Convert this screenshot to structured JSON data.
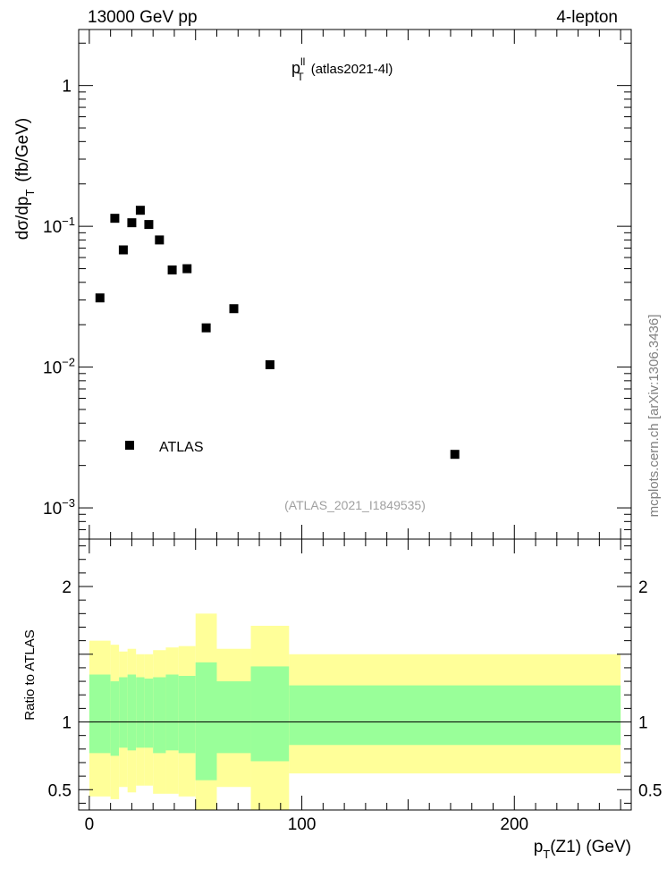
{
  "header": {
    "left": "13000 GeV pp",
    "right": "4-lepton"
  },
  "side_label": "mcplots.cern.ch [arXiv:1306.3436]",
  "chart_data": [
    {
      "type": "scatter",
      "title_main": "p",
      "title_sup": "ll",
      "title_sub": "T",
      "title_rest": "(atlas2021-4l)",
      "ylabel_main": "dσ/dp",
      "ylabel_sub": "T",
      "ylabel_rest": "(fb/GeV)",
      "y_scale": "log",
      "ylim": [
        0.0006,
        2.5
      ],
      "xlim": [
        -5,
        255
      ],
      "y_ticks": [
        {
          "value": 1,
          "label": "1"
        },
        {
          "value": 0.1,
          "label": "10",
          "exp": "−1"
        },
        {
          "value": 0.01,
          "label": "10",
          "exp": "−2"
        },
        {
          "value": 0.001,
          "label": "10",
          "exp": "−3"
        }
      ],
      "legend": {
        "label": "ATLAS",
        "placement": "lower-left"
      },
      "watermark": "(ATLAS_2021_I1849535)",
      "series": [
        {
          "name": "ATLAS",
          "marker": "square",
          "color": "#000000",
          "x": [
            5,
            12,
            16,
            20,
            24,
            28,
            33,
            39,
            46,
            55,
            68,
            85,
            172
          ],
          "y": [
            0.031,
            0.114,
            0.068,
            0.106,
            0.13,
            0.103,
            0.08,
            0.049,
            0.05,
            0.019,
            0.026,
            0.0104,
            0.0024
          ]
        }
      ]
    },
    {
      "type": "area",
      "ylabel": "Ratio to ATLAS",
      "xlabel_main": "p",
      "xlabel_sub": "T",
      "xlabel_rest": "(Z1) (GeV)",
      "ylim": [
        0.35,
        2.35
      ],
      "xlim": [
        -5,
        255
      ],
      "y_ticks": [
        {
          "value": 0.5,
          "label": "0.5"
        },
        {
          "value": 1,
          "label": "1"
        },
        {
          "value": 1.5,
          "label": ""
        },
        {
          "value": 2,
          "label": "2"
        }
      ],
      "x_ticks": [
        {
          "value": 0,
          "label": "0"
        },
        {
          "value": 100,
          "label": "100"
        },
        {
          "value": 200,
          "label": "200"
        }
      ],
      "reference_line": 1,
      "band_colors": {
        "outer": "#ffff99",
        "inner": "#99ff99"
      },
      "bins": [
        {
          "x0": 0,
          "x1": 10,
          "outer_lo": 0.45,
          "outer_hi": 1.6,
          "inner_lo": 0.77,
          "inner_hi": 1.35
        },
        {
          "x0": 10,
          "x1": 14,
          "outer_lo": 0.43,
          "outer_hi": 1.57,
          "inner_lo": 0.75,
          "inner_hi": 1.3
        },
        {
          "x0": 14,
          "x1": 18,
          "outer_lo": 0.52,
          "outer_hi": 1.52,
          "inner_lo": 0.81,
          "inner_hi": 1.33
        },
        {
          "x0": 18,
          "x1": 22,
          "outer_lo": 0.48,
          "outer_hi": 1.54,
          "inner_lo": 0.79,
          "inner_hi": 1.35
        },
        {
          "x0": 22,
          "x1": 26,
          "outer_lo": 0.53,
          "outer_hi": 1.5,
          "inner_lo": 0.81,
          "inner_hi": 1.33
        },
        {
          "x0": 26,
          "x1": 30,
          "outer_lo": 0.53,
          "outer_hi": 1.5,
          "inner_lo": 0.81,
          "inner_hi": 1.32
        },
        {
          "x0": 30,
          "x1": 36,
          "outer_lo": 0.47,
          "outer_hi": 1.53,
          "inner_lo": 0.77,
          "inner_hi": 1.33
        },
        {
          "x0": 36,
          "x1": 42,
          "outer_lo": 0.47,
          "outer_hi": 1.55,
          "inner_lo": 0.79,
          "inner_hi": 1.35
        },
        {
          "x0": 42,
          "x1": 50,
          "outer_lo": 0.45,
          "outer_hi": 1.56,
          "inner_lo": 0.77,
          "inner_hi": 1.34
        },
        {
          "x0": 50,
          "x1": 60,
          "outer_lo": 0.2,
          "outer_hi": 1.8,
          "inner_lo": 0.57,
          "inner_hi": 1.44
        },
        {
          "x0": 60,
          "x1": 76,
          "outer_lo": 0.52,
          "outer_hi": 1.54,
          "inner_lo": 0.77,
          "inner_hi": 1.3
        },
        {
          "x0": 76,
          "x1": 94,
          "outer_lo": 0.2,
          "outer_hi": 1.71,
          "inner_lo": 0.71,
          "inner_hi": 1.41
        },
        {
          "x0": 94,
          "x1": 250,
          "outer_lo": 0.62,
          "outer_hi": 1.5,
          "inner_lo": 0.83,
          "inner_hi": 1.27
        }
      ]
    }
  ]
}
